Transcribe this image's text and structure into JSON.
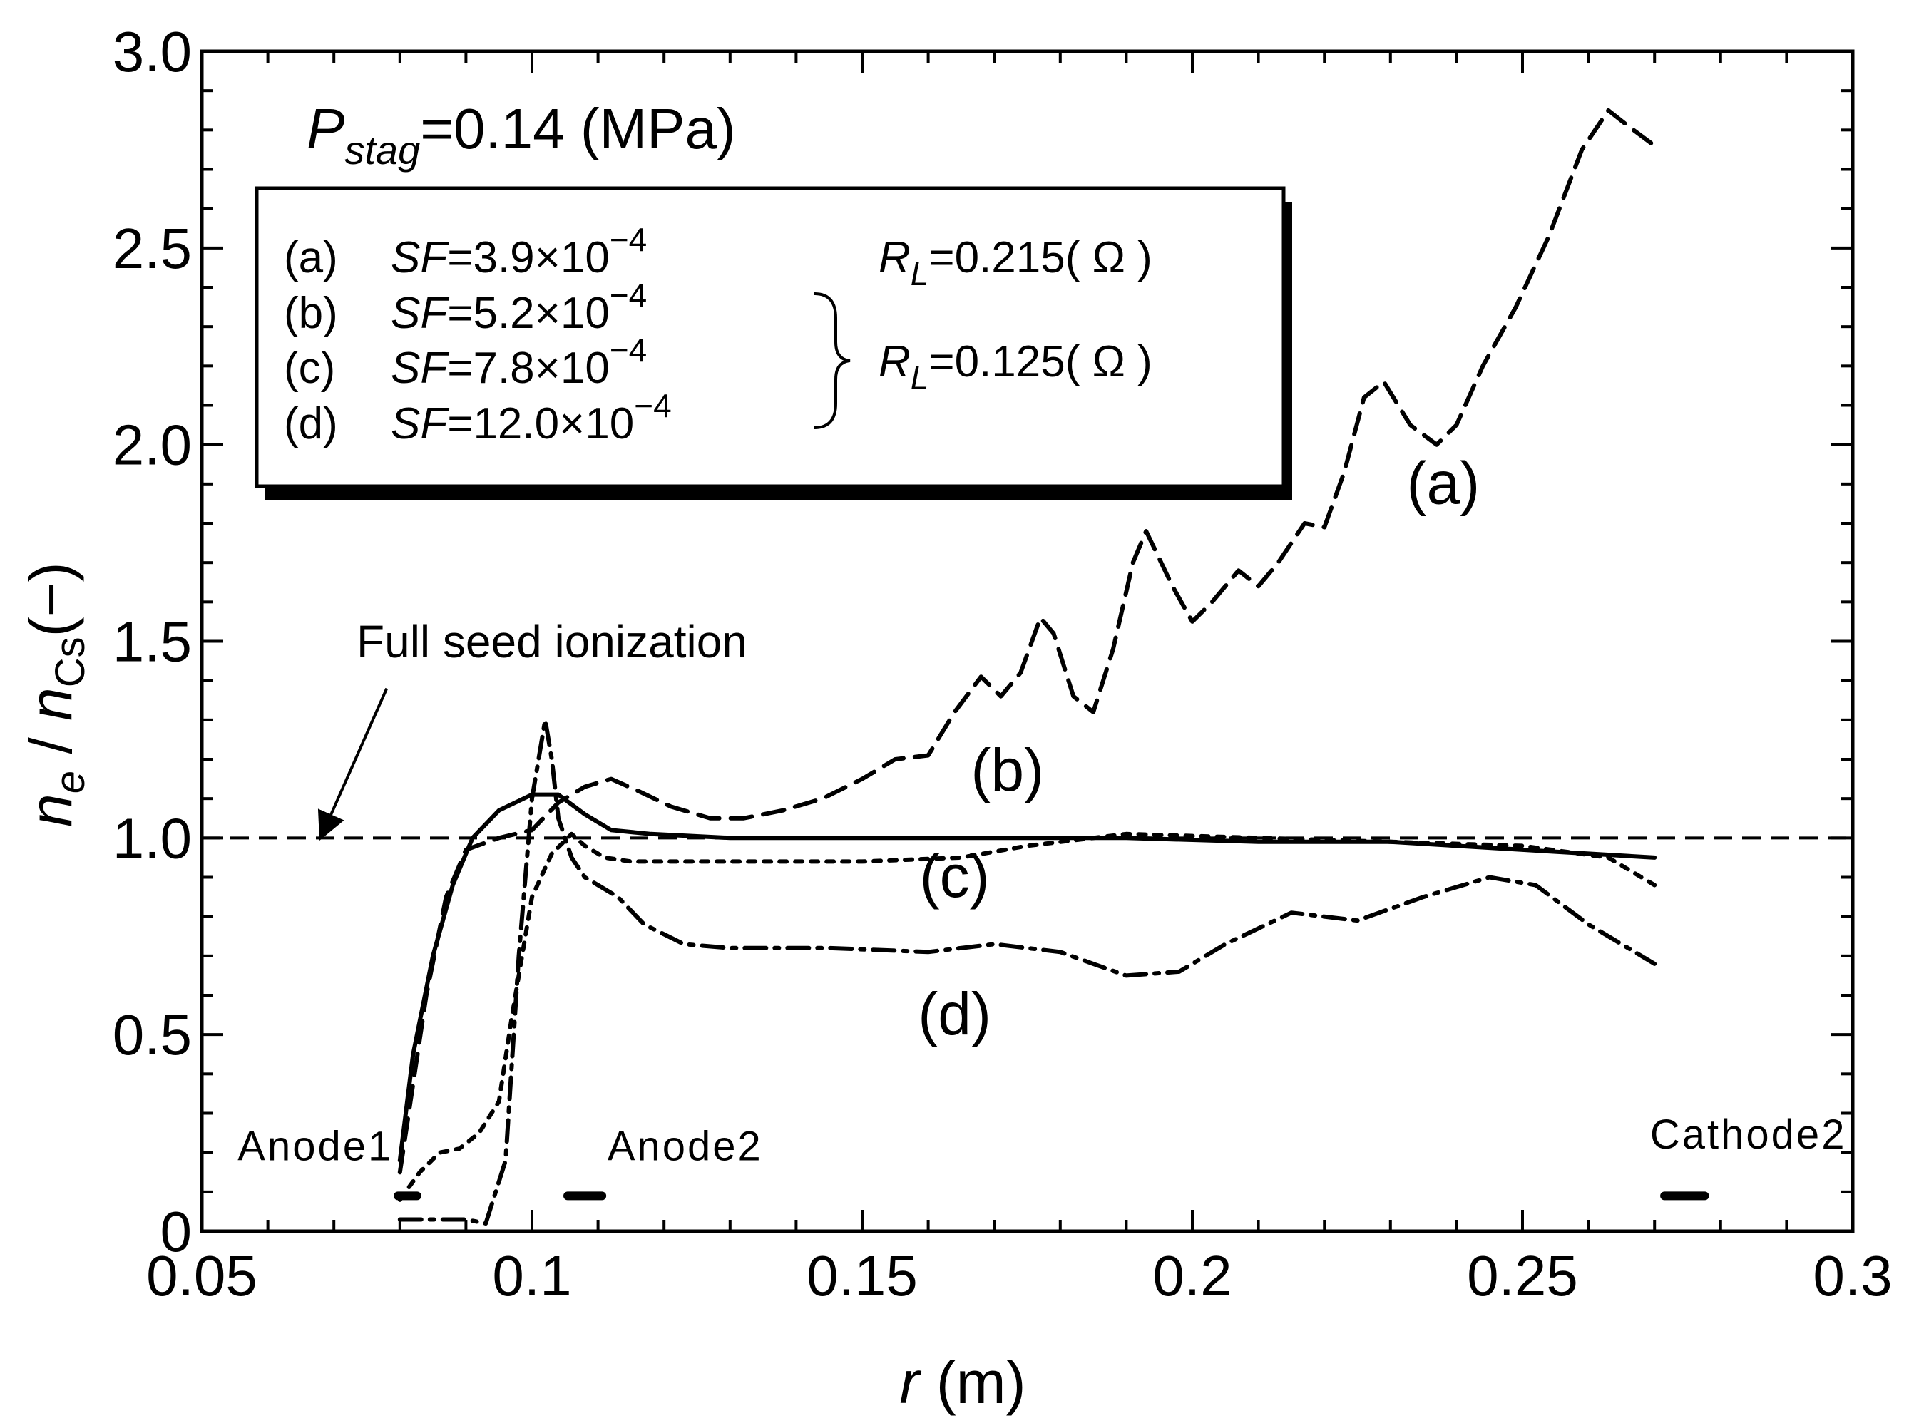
{
  "chart_data": {
    "type": "line",
    "title": "",
    "xlabel": {
      "var": "r",
      "unit": " (m)"
    },
    "ylabel": {
      "n": "n",
      "e": "e",
      "slash": " / ",
      "n2": "n",
      "cs": "Cs",
      "unit": "(−)"
    },
    "xlim": [
      0.05,
      0.3
    ],
    "ylim": [
      0,
      3.0
    ],
    "xticks": [
      0.05,
      0.1,
      0.15,
      0.2,
      0.25,
      0.3
    ],
    "xtick_labels": [
      "0.05",
      "0.1",
      "0.15",
      "0.2",
      "0.25",
      "0.3"
    ],
    "yticks": [
      0,
      0.5,
      1.0,
      1.5,
      2.0,
      2.5,
      3.0
    ],
    "ytick_labels": [
      "0",
      "0.5",
      "1.0",
      "1.5",
      "2.0",
      "2.5",
      "3.0"
    ],
    "grid": false,
    "pressure_label": {
      "var": "P",
      "sub": "stag",
      "text": "=0.14 (MPa)"
    },
    "legend": {
      "rows": [
        {
          "id": "(a)",
          "var": "SF",
          "text": "=3.9×10",
          "exp": "−4"
        },
        {
          "id": "(b)",
          "var": "SF",
          "text": "=5.2×10",
          "exp": "−4"
        },
        {
          "id": "(c)",
          "var": "SF",
          "text": "=7.8×10",
          "exp": "−4"
        },
        {
          "id": "(d)",
          "var": "SF",
          "text": "=12.0×10",
          "exp": "−4"
        }
      ],
      "rl": [
        {
          "var": "R",
          "sub": "L",
          "text": "=0.215( Ω )"
        },
        {
          "var": "R",
          "sub": "L",
          "text": "=0.125( Ω )"
        }
      ]
    },
    "reference_line": {
      "y": 1.0,
      "label": "Full seed ionization",
      "arrow_tip": [
        0.068,
        1.0
      ],
      "arrow_tail": [
        0.078,
        1.38
      ]
    },
    "curve_labels": [
      {
        "text": "(a)",
        "x": 0.238,
        "y": 1.85
      },
      {
        "text": "(b)",
        "x": 0.172,
        "y": 1.12
      },
      {
        "text": "(c)",
        "x": 0.164,
        "y": 0.85
      },
      {
        "text": "(d)",
        "x": 0.164,
        "y": 0.5
      }
    ],
    "electrodes": [
      {
        "name": "Anode1",
        "x_start": 0.0797,
        "x_end": 0.0826,
        "y": 0.09,
        "label_x": 0.0672,
        "label_y": 0.18
      },
      {
        "name": "Anode2",
        "x_start": 0.1054,
        "x_end": 0.1106,
        "y": 0.09,
        "label_x": 0.1232,
        "label_y": 0.18
      },
      {
        "name": "Cathode2",
        "x_start": 0.2715,
        "x_end": 0.2776,
        "y": 0.09,
        "label_x": 0.2842,
        "label_y": 0.21
      }
    ],
    "series": [
      {
        "name": "(a)",
        "style": "dashed",
        "x": [
          0.08,
          0.084,
          0.087,
          0.09,
          0.095,
          0.1,
          0.104,
          0.108,
          0.112,
          0.116,
          0.121,
          0.127,
          0.132,
          0.138,
          0.144,
          0.15,
          0.155,
          0.16,
          0.164,
          0.168,
          0.171,
          0.174,
          0.177,
          0.179,
          0.182,
          0.185,
          0.188,
          0.191,
          0.193,
          0.197,
          0.2,
          0.203,
          0.207,
          0.21,
          0.213,
          0.217,
          0.22,
          0.223,
          0.226,
          0.229,
          0.233,
          0.237,
          0.24,
          0.244,
          0.249,
          0.254,
          0.259,
          0.263,
          0.266,
          0.27
        ],
        "y": [
          0.15,
          0.6,
          0.85,
          0.97,
          1.0,
          1.02,
          1.09,
          1.13,
          1.15,
          1.12,
          1.08,
          1.05,
          1.05,
          1.07,
          1.1,
          1.15,
          1.2,
          1.21,
          1.32,
          1.41,
          1.36,
          1.42,
          1.56,
          1.52,
          1.36,
          1.32,
          1.48,
          1.7,
          1.78,
          1.64,
          1.55,
          1.6,
          1.68,
          1.64,
          1.7,
          1.8,
          1.79,
          1.93,
          2.12,
          2.16,
          2.05,
          2.0,
          2.05,
          2.2,
          2.35,
          2.53,
          2.75,
          2.85,
          2.81,
          2.76
        ]
      },
      {
        "name": "(b)",
        "style": "solid",
        "x": [
          0.08,
          0.082,
          0.085,
          0.088,
          0.091,
          0.095,
          0.1,
          0.104,
          0.108,
          0.112,
          0.118,
          0.13,
          0.15,
          0.17,
          0.19,
          0.21,
          0.23,
          0.25,
          0.26,
          0.27
        ],
        "y": [
          0.18,
          0.45,
          0.7,
          0.88,
          1.0,
          1.07,
          1.11,
          1.11,
          1.06,
          1.02,
          1.01,
          1.0,
          1.0,
          1.0,
          1.0,
          0.99,
          0.99,
          0.97,
          0.96,
          0.95
        ]
      },
      {
        "name": "(c)",
        "style": "dotted",
        "x": [
          0.08,
          0.083,
          0.086,
          0.089,
          0.092,
          0.095,
          0.097,
          0.1,
          0.103,
          0.106,
          0.108,
          0.111,
          0.115,
          0.13,
          0.15,
          0.165,
          0.175,
          0.19,
          0.21,
          0.23,
          0.25,
          0.263,
          0.27
        ],
        "y": [
          0.08,
          0.15,
          0.2,
          0.21,
          0.25,
          0.33,
          0.55,
          0.85,
          0.96,
          1.01,
          0.98,
          0.95,
          0.94,
          0.94,
          0.94,
          0.95,
          0.98,
          1.01,
          1.0,
          0.99,
          0.98,
          0.95,
          0.88
        ]
      },
      {
        "name": "(d)",
        "style": "dash-dot",
        "x": [
          0.08,
          0.085,
          0.09,
          0.093,
          0.096,
          0.098,
          0.1,
          0.102,
          0.103,
          0.104,
          0.106,
          0.108,
          0.11,
          0.113,
          0.117,
          0.123,
          0.13,
          0.145,
          0.16,
          0.17,
          0.18,
          0.185,
          0.19,
          0.198,
          0.205,
          0.215,
          0.225,
          0.235,
          0.245,
          0.252,
          0.26,
          0.27
        ],
        "y": [
          0.03,
          0.03,
          0.03,
          0.02,
          0.18,
          0.7,
          1.1,
          1.3,
          1.2,
          1.05,
          0.95,
          0.9,
          0.88,
          0.85,
          0.78,
          0.73,
          0.72,
          0.72,
          0.71,
          0.73,
          0.71,
          0.68,
          0.65,
          0.66,
          0.73,
          0.81,
          0.79,
          0.85,
          0.9,
          0.88,
          0.78,
          0.68
        ]
      }
    ]
  }
}
